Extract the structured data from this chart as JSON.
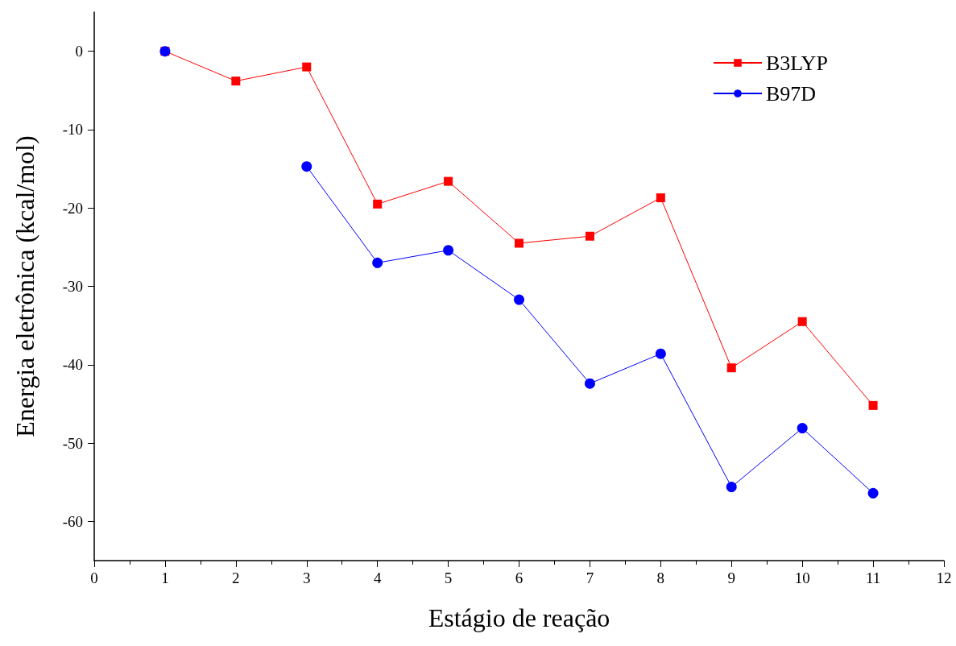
{
  "chart_data": {
    "type": "line",
    "xlabel": "Estágio de reação",
    "ylabel": "Energia eletrônica (kcal/mol)",
    "x": [
      1,
      2,
      3,
      4,
      5,
      6,
      7,
      8,
      9,
      10,
      11
    ],
    "series": [
      {
        "name": "B3LYP",
        "color": "#ff0000",
        "marker": "square",
        "values": [
          0,
          -3.8,
          -2.0,
          -19.5,
          -16.6,
          -24.5,
          -23.6,
          -18.7,
          -40.4,
          -34.5,
          -45.2
        ]
      },
      {
        "name": "B97D",
        "color": "#0000ff",
        "marker": "circle",
        "values": [
          0,
          null,
          -14.7,
          -27.0,
          -25.4,
          -31.7,
          -42.4,
          -38.6,
          -55.6,
          -48.1,
          -56.4
        ]
      }
    ],
    "xlim": [
      0,
      12
    ],
    "xticks": [
      0,
      1,
      2,
      3,
      4,
      5,
      6,
      7,
      8,
      9,
      10,
      11,
      12
    ],
    "ylim": [
      -65,
      5
    ],
    "yticks": [
      -60,
      -50,
      -40,
      -30,
      -20,
      -10,
      0
    ],
    "grid": false,
    "legend": "top right",
    "line_style": "solid"
  }
}
